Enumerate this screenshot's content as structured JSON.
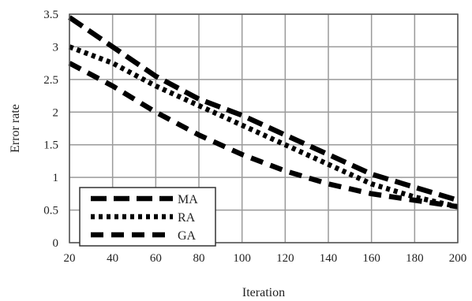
{
  "chart_data": {
    "type": "line",
    "title": "",
    "xlabel": "Iteration",
    "ylabel": "Error rate",
    "xlim": [
      20,
      200
    ],
    "ylim": [
      0,
      3.5
    ],
    "x_ticks": [
      20,
      40,
      60,
      80,
      100,
      120,
      140,
      160,
      180,
      200
    ],
    "y_ticks": [
      0,
      0.5,
      1,
      1.5,
      2,
      2.5,
      3,
      3.5
    ],
    "x_tick_labels": [
      "20",
      "40",
      "60",
      "80",
      "100",
      "120",
      "140",
      "160",
      "180",
      "200"
    ],
    "y_tick_labels": [
      "0",
      "0.5",
      "1",
      "1.5",
      "2",
      "2.5",
      "3",
      "3.5"
    ],
    "grid": true,
    "legend_position": "bottom-left",
    "series": [
      {
        "name": "MA",
        "style": "long-dash",
        "color": "#000000",
        "x": [
          20,
          40,
          60,
          80,
          100,
          120,
          140,
          160,
          180,
          200
        ],
        "y": [
          3.45,
          3.0,
          2.55,
          2.2,
          1.95,
          1.65,
          1.35,
          1.05,
          0.85,
          0.65
        ]
      },
      {
        "name": "RA",
        "style": "dotted",
        "color": "#000000",
        "x": [
          20,
          40,
          60,
          80,
          100,
          120,
          140,
          160,
          180,
          200
        ],
        "y": [
          3.0,
          2.75,
          2.4,
          2.1,
          1.8,
          1.5,
          1.2,
          0.9,
          0.7,
          0.55
        ]
      },
      {
        "name": "GA",
        "style": "dash",
        "color": "#000000",
        "x": [
          20,
          40,
          60,
          80,
          100,
          120,
          140,
          160,
          180,
          200
        ],
        "y": [
          2.75,
          2.4,
          2.0,
          1.65,
          1.35,
          1.1,
          0.9,
          0.75,
          0.65,
          0.55
        ]
      }
    ]
  }
}
